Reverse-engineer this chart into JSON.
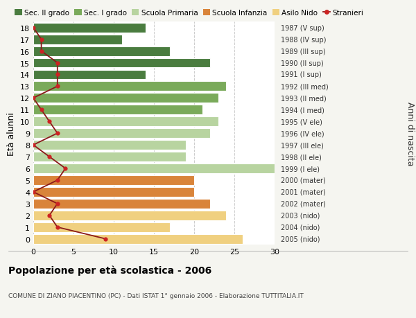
{
  "ages": [
    18,
    17,
    16,
    15,
    14,
    13,
    12,
    11,
    10,
    9,
    8,
    7,
    6,
    5,
    4,
    3,
    2,
    1,
    0
  ],
  "anni_nascita": [
    "1987 (V sup)",
    "1988 (IV sup)",
    "1989 (III sup)",
    "1990 (II sup)",
    "1991 (I sup)",
    "1992 (III med)",
    "1993 (II med)",
    "1994 (I med)",
    "1995 (V ele)",
    "1996 (IV ele)",
    "1997 (III ele)",
    "1998 (II ele)",
    "1999 (I ele)",
    "2000 (mater)",
    "2001 (mater)",
    "2002 (mater)",
    "2003 (nido)",
    "2004 (nido)",
    "2005 (nido)"
  ],
  "bar_values": [
    14,
    11,
    17,
    22,
    14,
    24,
    23,
    21,
    23,
    22,
    19,
    19,
    30,
    20,
    20,
    22,
    24,
    17,
    26
  ],
  "bar_colors": [
    "#4a7c3f",
    "#4a7c3f",
    "#4a7c3f",
    "#4a7c3f",
    "#4a7c3f",
    "#7aaa5a",
    "#7aaa5a",
    "#7aaa5a",
    "#b8d4a0",
    "#b8d4a0",
    "#b8d4a0",
    "#b8d4a0",
    "#b8d4a0",
    "#d9843a",
    "#d9843a",
    "#d9843a",
    "#f0d080",
    "#f0d080",
    "#f0d080"
  ],
  "stranieri": [
    0,
    1,
    1,
    3,
    3,
    3,
    0,
    1,
    2,
    3,
    0,
    2,
    4,
    3,
    0,
    3,
    2,
    3,
    9
  ],
  "legend_labels": [
    "Sec. II grado",
    "Sec. I grado",
    "Scuola Primaria",
    "Scuola Infanzia",
    "Asilo Nido",
    "Stranieri"
  ],
  "legend_colors": [
    "#4a7c3f",
    "#7aaa5a",
    "#b8d4a0",
    "#d9843a",
    "#f0d080",
    "#cc2222"
  ],
  "title": "Popolazione per età scolastica - 2006",
  "subtitle": "COMUNE DI ZIANO PIACENTINO (PC) - Dati ISTAT 1° gennaio 2006 - Elaborazione TUTTITALIA.IT",
  "ylabel_left": "Età alunni",
  "ylabel_right": "Anni di nascita",
  "xlim": [
    0,
    30
  ],
  "xticks": [
    0,
    5,
    10,
    15,
    20,
    25,
    30
  ],
  "bg_color": "#f5f5f0",
  "plot_bg_color": "#ffffff",
  "stranieri_line_color": "#8b1a1a",
  "stranieri_dot_color": "#cc2222"
}
